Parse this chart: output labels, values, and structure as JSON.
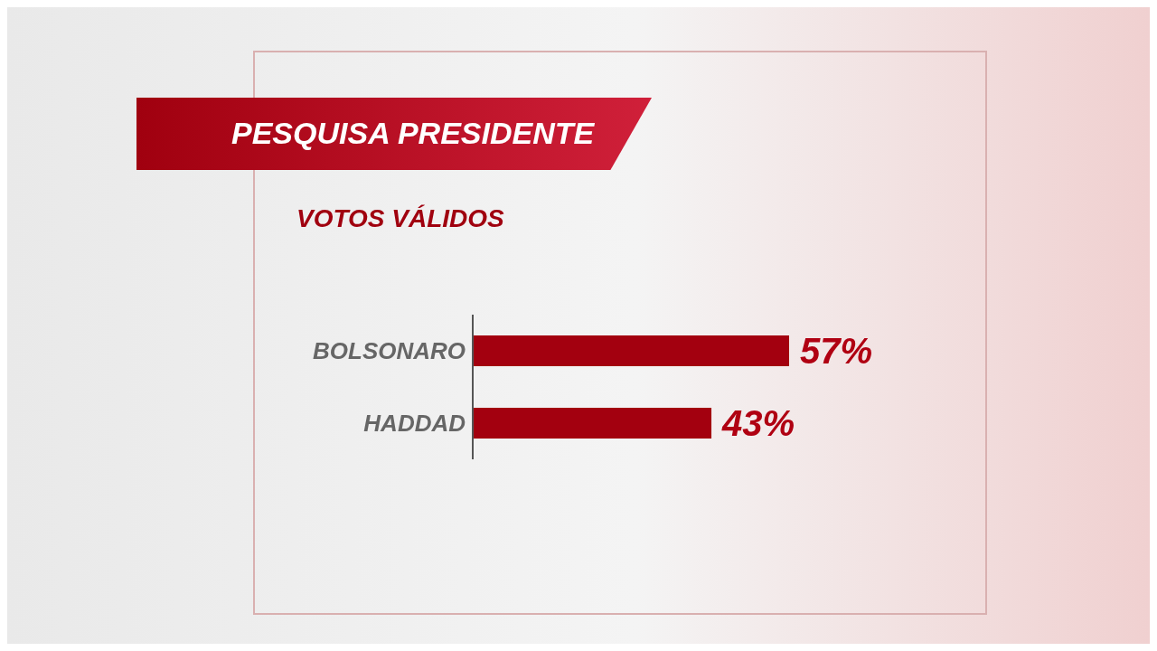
{
  "chart_data": {
    "type": "bar",
    "orientation": "horizontal",
    "title": "PESQUISA PRESIDENTE",
    "subtitle": "VOTOS VÁLIDOS",
    "categories": [
      "BOLSONARO",
      "HADDAD"
    ],
    "values": [
      57,
      43
    ],
    "value_labels": [
      "57%",
      "43%"
    ],
    "color": "#a3000f",
    "grid": false,
    "legend": false
  }
}
